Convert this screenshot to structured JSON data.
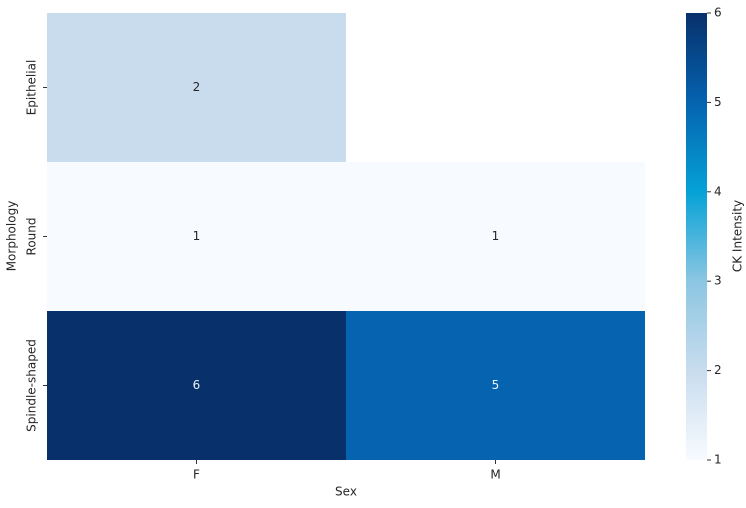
{
  "chart_data": {
    "type": "heatmap",
    "x_label": "Sex",
    "y_label": "Morphology",
    "x_categories": [
      "F",
      "M"
    ],
    "y_categories": [
      "Epithelial",
      "Round",
      "Spindle-shaped"
    ],
    "values": [
      [
        2,
        null
      ],
      [
        1,
        1
      ],
      [
        6,
        5
      ]
    ],
    "colorbar_label": "CK Intensity",
    "clim": [
      1,
      6
    ],
    "cticks": [
      1,
      2,
      3,
      4,
      5,
      6
    ],
    "colorscale": [
      "#f7fbff",
      "#c8dcee",
      "#8cc6e2",
      "#05a2d6",
      "#0563b0",
      "#08306b"
    ]
  }
}
